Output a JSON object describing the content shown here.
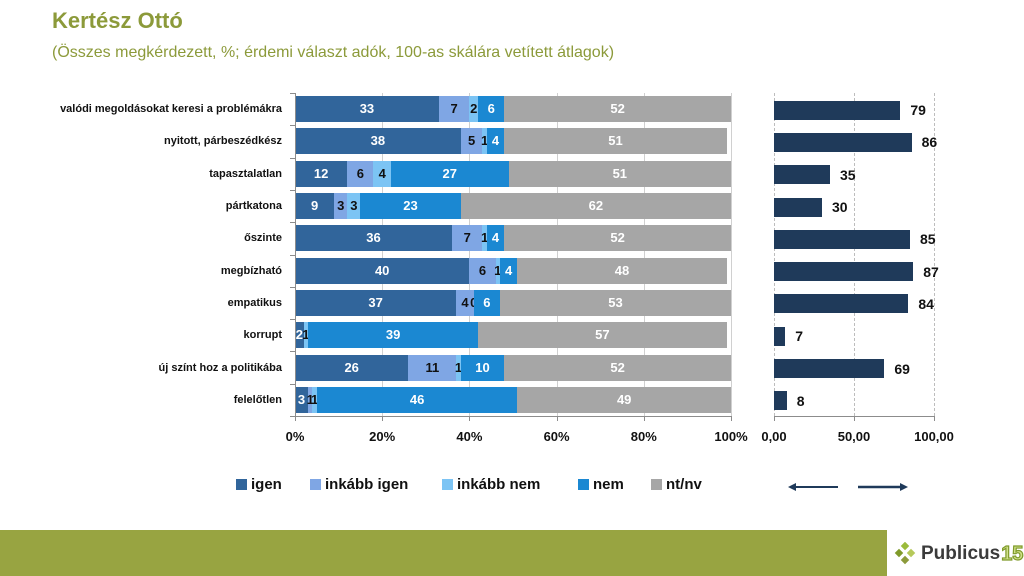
{
  "header": {
    "title": "Kertész Ottó",
    "subtitle": "(Összes megkérdezett, %; érdemi választ adók, 100-as skálára vetített átlagok)"
  },
  "chart_data": [
    {
      "type": "bar",
      "stacked": true,
      "orientation": "horizontal",
      "title": "",
      "xlabel": "",
      "ylabel": "",
      "xlim": [
        0,
        100
      ],
      "x_ticks": [
        "0%",
        "20%",
        "40%",
        "60%",
        "80%",
        "100%"
      ],
      "grid": true,
      "legend": "bottom",
      "categories": [
        "valódi megoldásokat keresi a problémákra",
        "nyitott, párbeszédkész",
        "tapasztalatlan",
        "pártkatona",
        "őszinte",
        "megbízható",
        "empatikus",
        "korrupt",
        "új színt hoz a politikába",
        "felelőtlen"
      ],
      "series": [
        {
          "name": "igen",
          "color": "#31659B",
          "values": [
            33,
            38,
            12,
            9,
            36,
            40,
            37,
            2,
            26,
            3
          ]
        },
        {
          "name": "inkább igen",
          "color": "#7FA6E4",
          "values": [
            7,
            5,
            6,
            3,
            7,
            6,
            4,
            null,
            11,
            1
          ]
        },
        {
          "name": "inkább nem",
          "color": "#7CC4F4",
          "values": [
            2,
            1,
            4,
            3,
            1,
            1,
            0,
            1,
            1,
            1
          ]
        },
        {
          "name": "nem",
          "color": "#1B88D2",
          "values": [
            6,
            4,
            27,
            23,
            4,
            4,
            6,
            39,
            10,
            46
          ]
        },
        {
          "name": "nt/nv",
          "color": "#A6A6A6",
          "values": [
            52,
            51,
            51,
            62,
            52,
            48,
            53,
            57,
            52,
            49
          ]
        }
      ]
    },
    {
      "type": "bar",
      "orientation": "horizontal",
      "title": "",
      "xlabel": "",
      "ylabel": "",
      "xlim": [
        0,
        100
      ],
      "x_ticks": [
        "0,00",
        "50,00",
        "100,00"
      ],
      "grid": true,
      "color": "#1F3A5A",
      "categories": [
        "valódi megoldásokat keresi a problémákra",
        "nyitott, párbeszédkész",
        "tapasztalatlan",
        "pártkatona",
        "őszinte",
        "megbízható",
        "empatikus",
        "korrupt",
        "új színt hoz a politikába",
        "felelőtlen"
      ],
      "values": [
        79,
        86,
        35,
        30,
        85,
        87,
        84,
        7,
        69,
        8
      ]
    }
  ],
  "arrows": {
    "left": "arrow-left-icon",
    "right": "arrow-right-icon",
    "color": "#1F3A5A"
  },
  "footer": {
    "brand_color": "#98A441",
    "logo_text": "Publicus",
    "logo_number": "15"
  }
}
